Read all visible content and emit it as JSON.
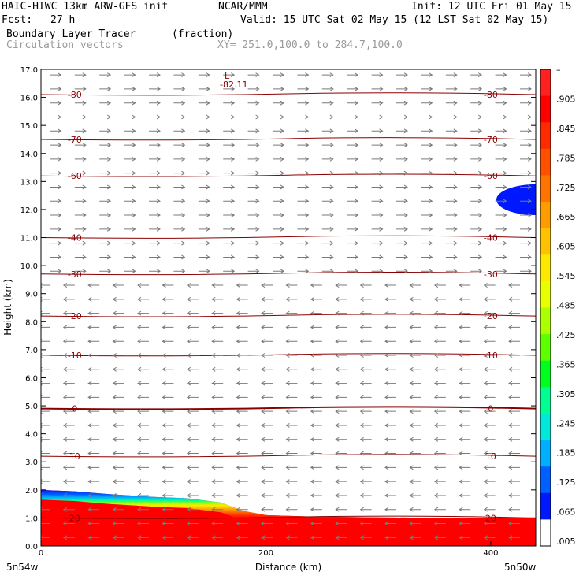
{
  "header": {
    "model": "HAIC-HIWC 13km ARW-GFS init",
    "org": "NCAR/MMM",
    "init": "Init: 12 UTC Fri 01 May 15",
    "fcst_label": "Fcst:",
    "fcst_value": "27 h",
    "valid": "Valid: 15 UTC Sat 02 May 15 (12 LST Sat 02 May 15)",
    "field": "Boundary Layer Tracer",
    "units": "(fraction)",
    "vectors": "Circulation vectors",
    "xy": "XY= 251.0,100.0 to 284.7,100.0"
  },
  "chart_data": {
    "type": "heatmap",
    "xlabel": "Distance (km)",
    "ylabel": "Height (km)",
    "xlim": [
      0,
      440
    ],
    "ylim": [
      0,
      17
    ],
    "xticks": [
      "0",
      "200",
      "400"
    ],
    "yticks": [
      "0.0",
      "1.0",
      "2.0",
      "3.0",
      "4.0",
      "5.0",
      "6.0",
      "7.0",
      "8.0",
      "9.0",
      "10.0",
      "11.0",
      "12.0",
      "13.0",
      "14.0",
      "15.0",
      "16.0",
      "17.0"
    ],
    "x_end_labels": [
      "5n54w",
      "5n50w"
    ],
    "colorbar_labels": [
      "–",
      ".905",
      ".845",
      ".785",
      ".725",
      ".665",
      ".605",
      ".545",
      ".485",
      ".425",
      ".365",
      ".305",
      ".245",
      ".185",
      ".125",
      ".065",
      ".005"
    ],
    "colorbar_colors": [
      "#ff2020",
      "#ff0000",
      "#ff2a00",
      "#ff5000",
      "#ff7400",
      "#ff9c00",
      "#ffc200",
      "#ffe800",
      "#e8ff00",
      "#aaff00",
      "#60ff00",
      "#00ff20",
      "#00ff90",
      "#00e8d8",
      "#00b0ff",
      "#0060ff",
      "#0018ff",
      "#ffffff"
    ],
    "tracer_top_km": [
      [
        0,
        2.0
      ],
      [
        30,
        1.95
      ],
      [
        60,
        1.85
      ],
      [
        100,
        1.75
      ],
      [
        130,
        1.7
      ],
      [
        160,
        1.55
      ],
      [
        180,
        1.25
      ],
      [
        200,
        1.1
      ],
      [
        240,
        1.05
      ],
      [
        300,
        1.02
      ],
      [
        360,
        1.0
      ],
      [
        440,
        1.0
      ]
    ],
    "upper_patch": {
      "x0": 405,
      "x1": 440,
      "y0": 11.8,
      "y1": 12.9
    },
    "temperature_contours": [
      {
        "label": "-80",
        "height_km": 16.1
      },
      {
        "label": "-70",
        "height_km": 14.5
      },
      {
        "label": "-60",
        "height_km": 13.2
      },
      {
        "label": "-40",
        "height_km": 11.0
      },
      {
        "label": "-30",
        "height_km": 9.7
      },
      {
        "label": "-20",
        "height_km": 8.2
      },
      {
        "label": "-10",
        "height_km": 6.8
      },
      {
        "label": "0",
        "height_km": 4.9
      },
      {
        "label": "10",
        "height_km": 3.2
      },
      {
        "label": "20",
        "height_km": 1.0
      }
    ],
    "low_label": "L",
    "low_value": "-82.11",
    "wind_regimes": [
      {
        "from_km": 9.5,
        "to_km": 17.0,
        "direction": "east"
      },
      {
        "from_km": 0.0,
        "to_km": 9.5,
        "direction": "west"
      }
    ]
  }
}
